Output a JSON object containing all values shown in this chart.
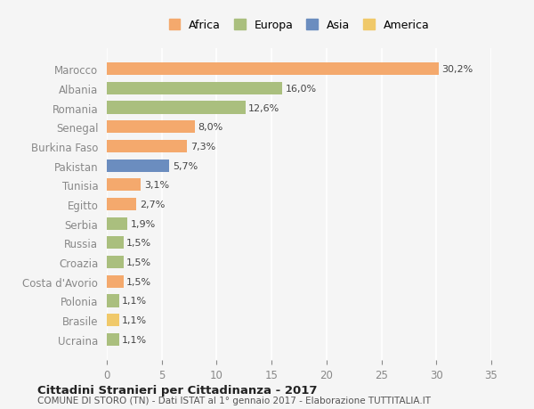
{
  "countries": [
    "Marocco",
    "Albania",
    "Romania",
    "Senegal",
    "Burkina Faso",
    "Pakistan",
    "Tunisia",
    "Egitto",
    "Serbia",
    "Russia",
    "Croazia",
    "Costa d'Avorio",
    "Polonia",
    "Brasile",
    "Ucraina"
  ],
  "values": [
    30.2,
    16.0,
    12.6,
    8.0,
    7.3,
    5.7,
    3.1,
    2.7,
    1.9,
    1.5,
    1.5,
    1.5,
    1.1,
    1.1,
    1.1
  ],
  "labels": [
    "30,2%",
    "16,0%",
    "12,6%",
    "8,0%",
    "7,3%",
    "5,7%",
    "3,1%",
    "2,7%",
    "1,9%",
    "1,5%",
    "1,5%",
    "1,5%",
    "1,1%",
    "1,1%",
    "1,1%"
  ],
  "colors": [
    "#F4A96D",
    "#AABF7E",
    "#AABF7E",
    "#F4A96D",
    "#F4A96D",
    "#6B8DBF",
    "#F4A96D",
    "#F4A96D",
    "#AABF7E",
    "#AABF7E",
    "#AABF7E",
    "#F4A96D",
    "#AABF7E",
    "#F0C96A",
    "#AABF7E"
  ],
  "legend_items": [
    {
      "label": "Africa",
      "color": "#F4A96D"
    },
    {
      "label": "Europa",
      "color": "#AABF7E"
    },
    {
      "label": "Asia",
      "color": "#6B8DBF"
    },
    {
      "label": "America",
      "color": "#F0C96A"
    }
  ],
  "xlim": [
    0,
    35
  ],
  "xticks": [
    0,
    5,
    10,
    15,
    20,
    25,
    30,
    35
  ],
  "title": "Cittadini Stranieri per Cittadinanza - 2017",
  "subtitle": "COMUNE DI STORO (TN) - Dati ISTAT al 1° gennaio 2017 - Elaborazione TUTTITALIA.IT",
  "background_color": "#f5f5f5",
  "bar_height": 0.65
}
